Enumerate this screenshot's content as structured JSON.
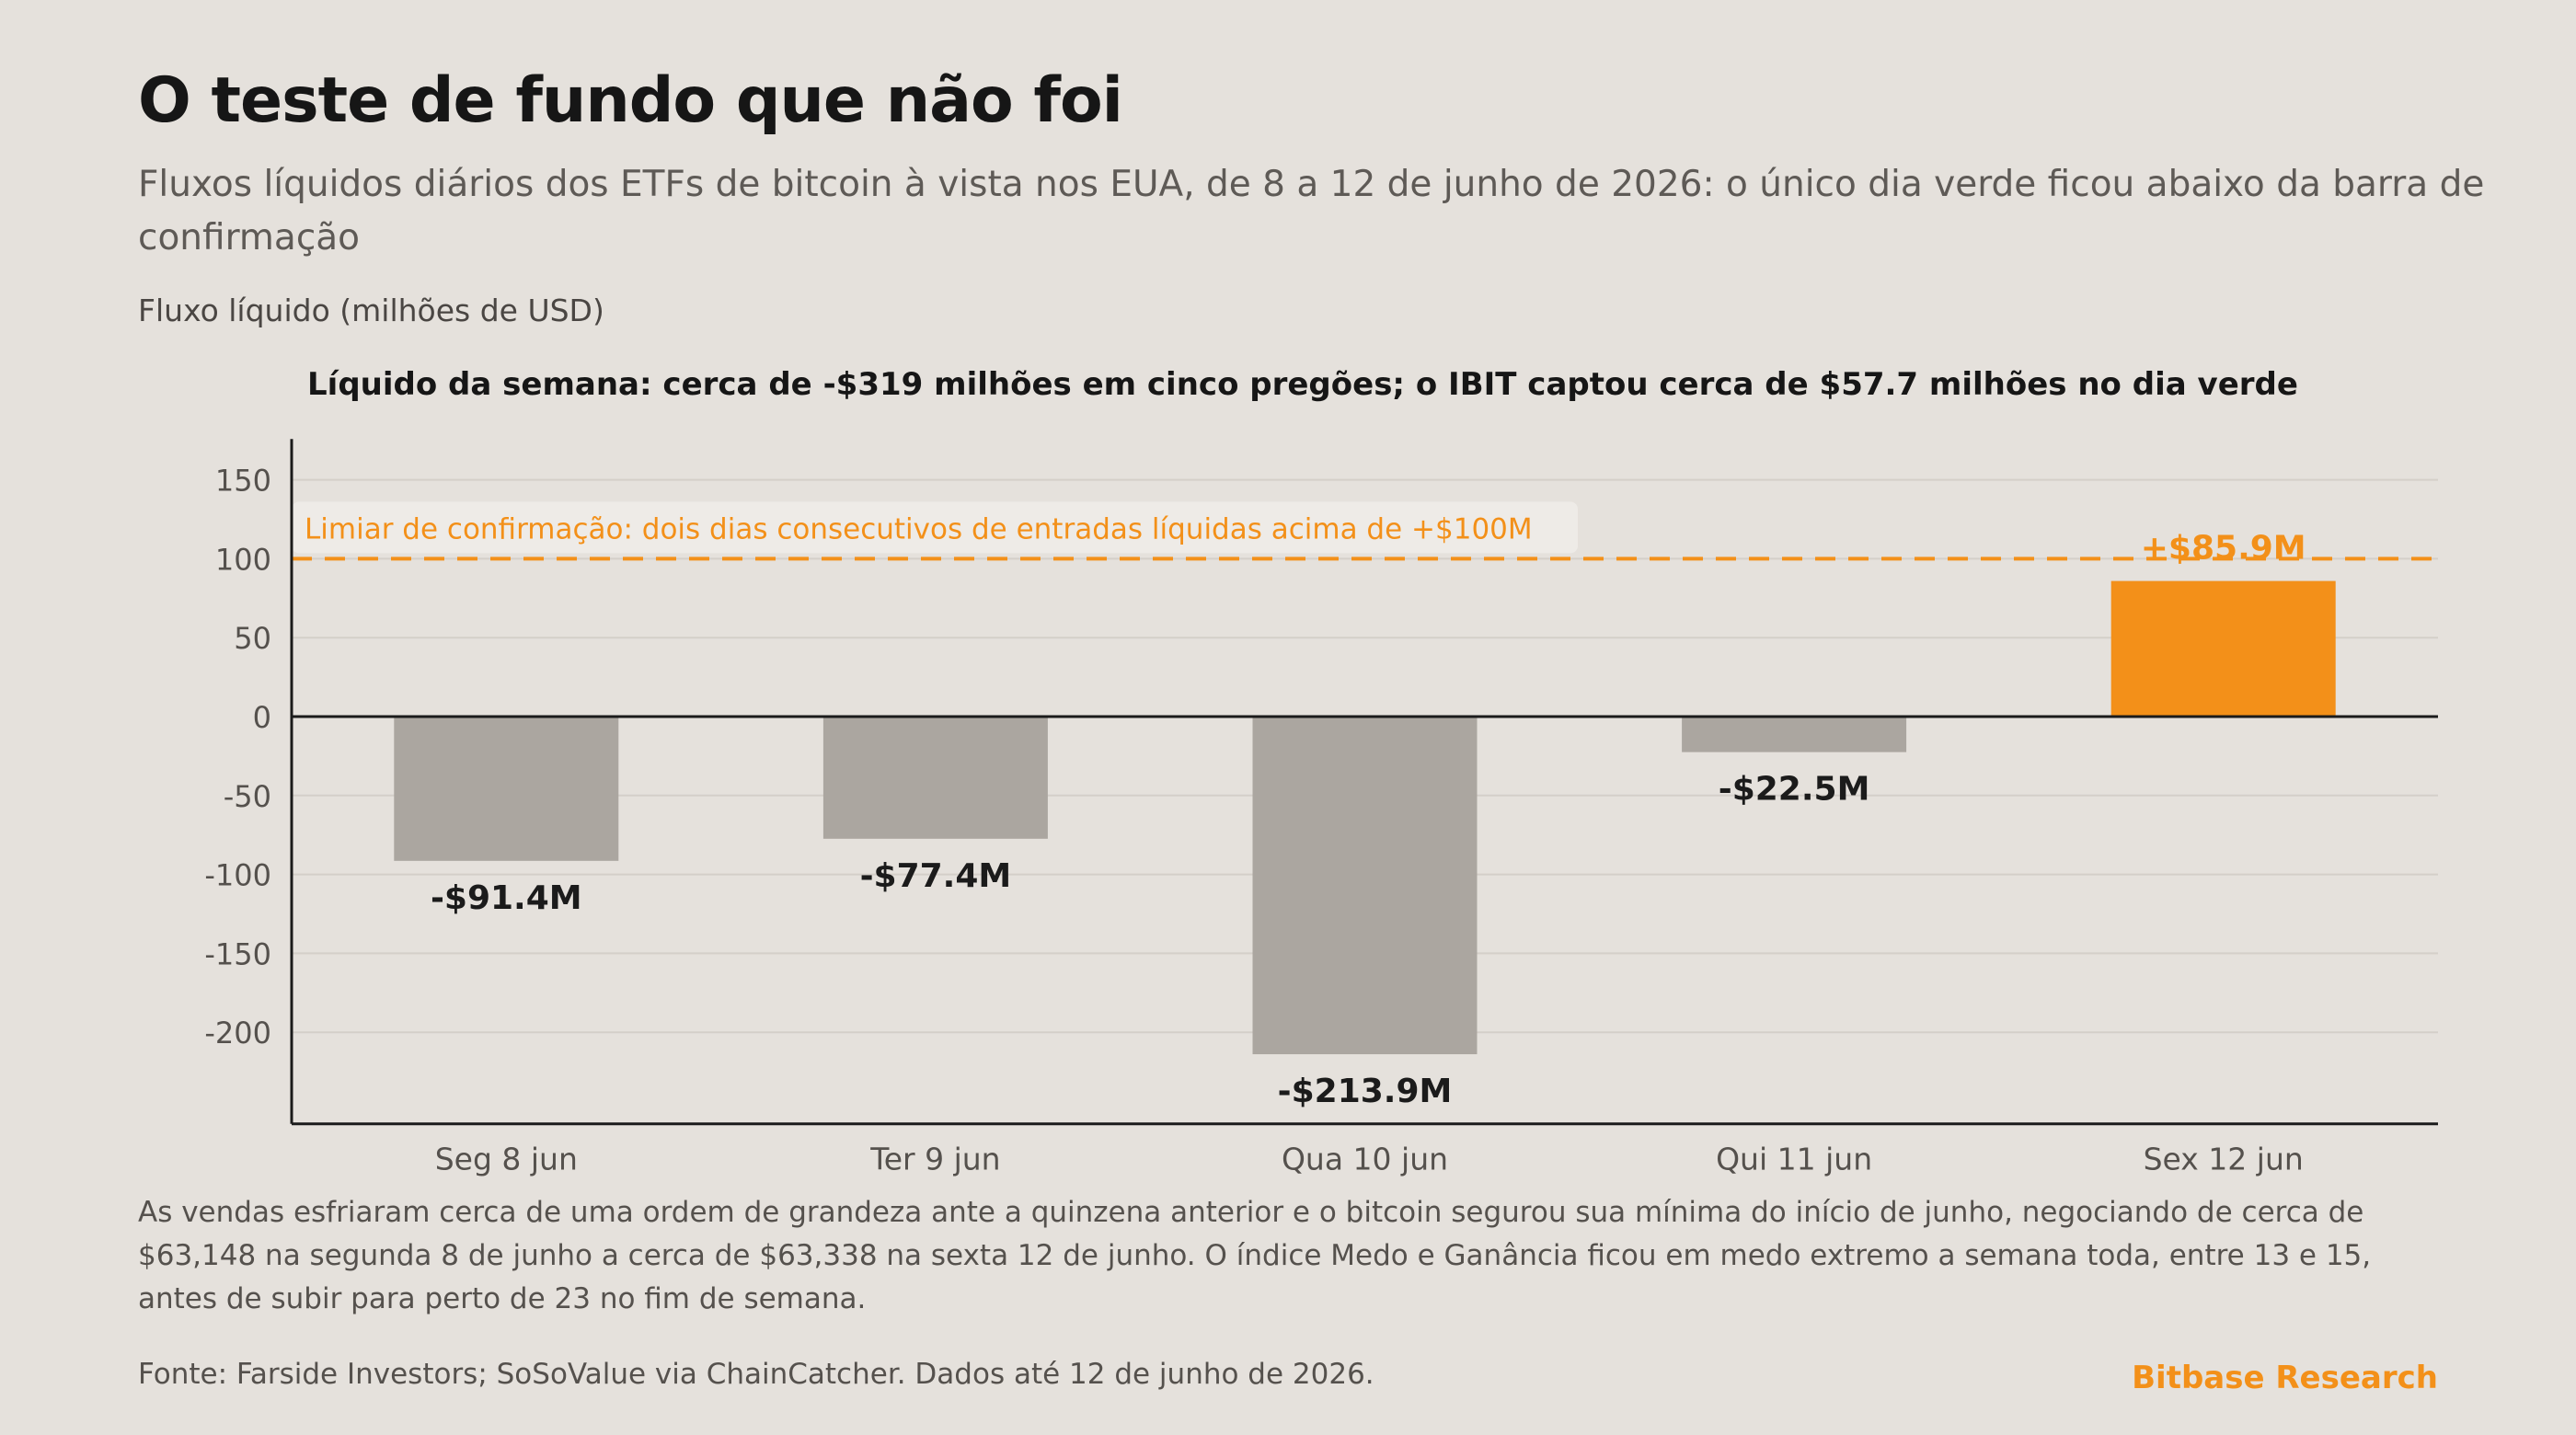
{
  "title": "O teste de fundo que não foi",
  "subtitle": "Fluxos líquidos diários dos ETFs de bitcoin à vista nos EUA, de 8 a 12 de junho de 2026: o único dia verde ficou abaixo da barra de confirmação",
  "footnote": "As vendas esfriaram cerca de uma ordem de grandeza ante a quinzena anterior e o bitcoin segurou sua mínima do início de junho, negociando de cerca de $63,148 na segunda 8 de junho a cerca de $63,338 na sexta 12 de junho. O índice Medo e Ganância ficou em medo extremo a semana toda, entre 13 e 15, antes de subir para perto de 23 no fim de semana.",
  "source": "Fonte: Farside Investors; SoSoValue via ChainCatcher. Dados até 12 de junho de 2026.",
  "brand": "Bitbase Research",
  "colors": {
    "background": "#E5E1DC",
    "negative_bar": "#ABA6A0",
    "positive_bar": "#F39019",
    "accent": "#F39019",
    "text": "#1B1B1B",
    "grid": "#D4CFC9"
  },
  "chart_data": {
    "type": "bar",
    "ylabel": "Fluxo líquido (milhões de USD)",
    "annotation": "Líquido da semana: cerca de -$319 milhões em cinco pregões; o IBIT captou cerca de $57.7 milhões no dia verde",
    "categories": [
      "Seg 8 jun",
      "Ter 9 jun",
      "Qua 10 jun",
      "Qui 11 jun",
      "Sex 12 jun"
    ],
    "values": [
      -91.4,
      -77.4,
      -213.9,
      -22.5,
      85.9
    ],
    "value_labels": [
      "-$91.4M",
      "-$77.4M",
      "-$213.9M",
      "-$22.5M",
      "+$85.9M"
    ],
    "highlight_index": 4,
    "ylim": [
      -258,
      163
    ],
    "yticks": [
      150,
      100,
      50,
      0,
      -50,
      -100,
      -150,
      -200
    ],
    "grid": true,
    "threshold": {
      "value": 100,
      "label": "Limiar de confirmação: dois dias consecutivos de entradas líquidas acima de +$100M"
    }
  }
}
